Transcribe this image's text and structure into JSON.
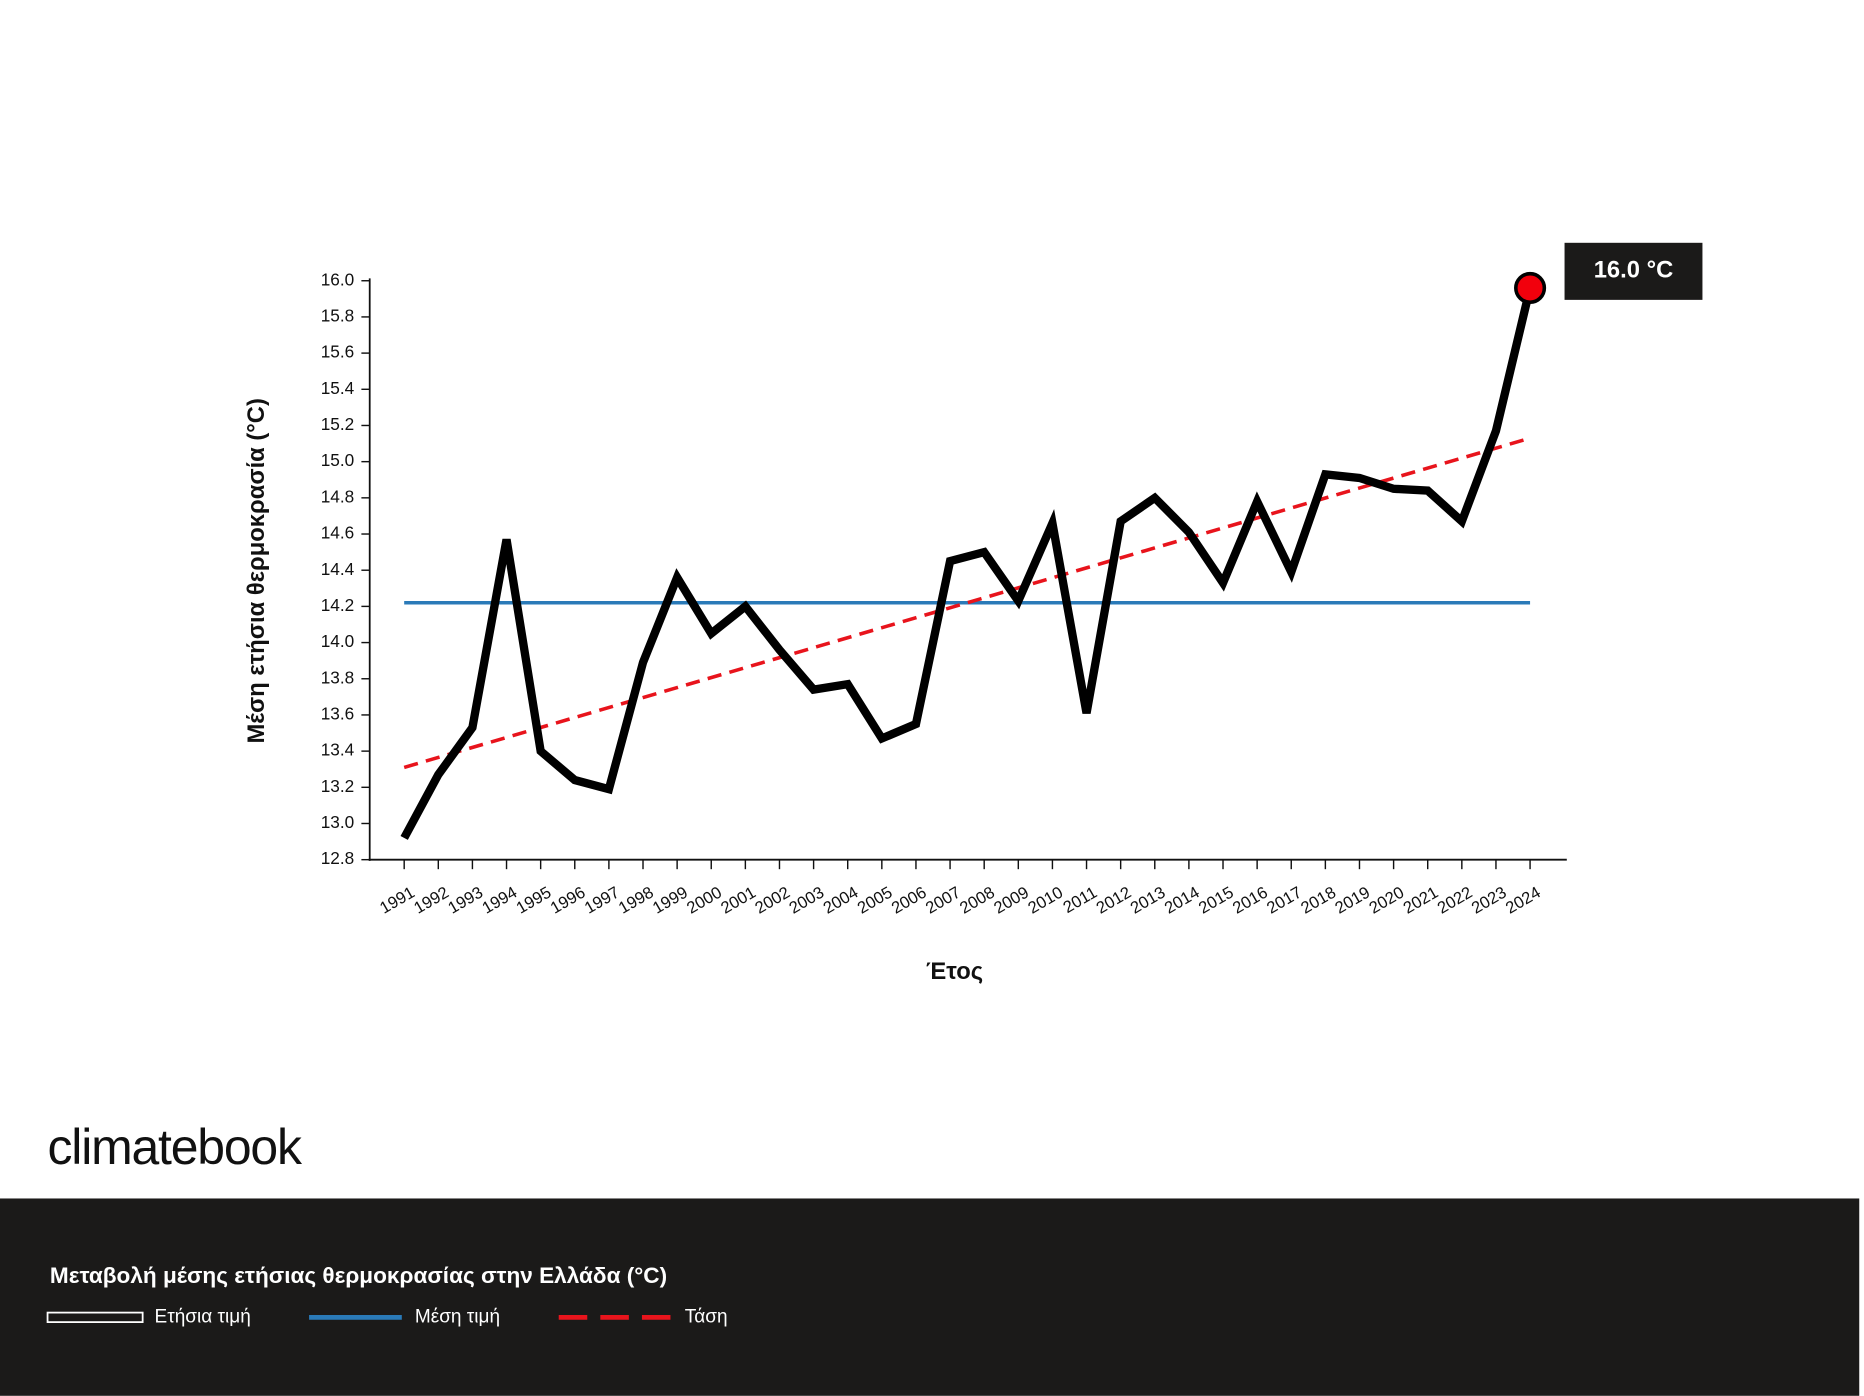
{
  "chart_data": {
    "type": "line",
    "xlabel": "Έτος",
    "ylabel": "Μέση ετήσια θερμοκρασία (°C)",
    "categories": [
      "1991",
      "1992",
      "1993",
      "1994",
      "1995",
      "1996",
      "1997",
      "1998",
      "1999",
      "2000",
      "2001",
      "2002",
      "2003",
      "2004",
      "2005",
      "2006",
      "2007",
      "2008",
      "2009",
      "2010",
      "2011",
      "2012",
      "2013",
      "2014",
      "2015",
      "2016",
      "2017",
      "2018",
      "2019",
      "2020",
      "2021",
      "2022",
      "2023",
      "2024"
    ],
    "series": [
      {
        "name": "Ετήσια τιμή",
        "color": "#000000",
        "values": [
          12.92,
          13.27,
          13.53,
          14.57,
          13.4,
          13.24,
          13.19,
          13.89,
          14.36,
          14.05,
          14.2,
          13.96,
          13.74,
          13.77,
          13.47,
          13.55,
          14.45,
          14.5,
          14.23,
          14.66,
          13.61,
          14.67,
          14.8,
          14.61,
          14.33,
          14.78,
          14.39,
          14.93,
          14.91,
          14.85,
          14.84,
          14.67,
          15.17,
          15.96
        ],
        "value_labels": [
          null,
          null,
          null,
          null,
          null,
          null,
          null,
          null,
          null,
          null,
          null,
          null,
          null,
          null,
          null,
          null,
          null,
          null,
          null,
          null,
          null,
          null,
          null,
          null,
          null,
          null,
          null,
          null,
          null,
          null,
          null,
          null,
          null,
          "16.0 °C"
        ]
      },
      {
        "name": "Μέση τιμή",
        "color": "#2a7ab8",
        "x": [
          "1991",
          "2024"
        ],
        "values": [
          14.22,
          14.22
        ]
      },
      {
        "name": "Τάση",
        "color": "#e8141c",
        "x": [
          "1991",
          "2024"
        ],
        "values": [
          13.31,
          15.13
        ]
      }
    ],
    "ylim": [
      12.8,
      16.0
    ],
    "yticks": [
      12.8,
      {
        "value": 13.0,
        "label": "13.0"
      },
      13.2,
      13.4,
      13.6,
      13.8,
      {
        "value": 14.0,
        "label": "14.0"
      },
      14.2,
      14.4,
      14.6,
      14.8,
      {
        "value": 15.0,
        "label": "15.0"
      },
      15.2,
      15.4,
      15.6,
      15.8,
      {
        "value": 16.0,
        "label": "16.0"
      }
    ],
    "footer_title": "Μεταβολή μέσης ετήσιας θερμοκρασίας στην Ελλάδα (°C)",
    "brand": "climatebook"
  }
}
